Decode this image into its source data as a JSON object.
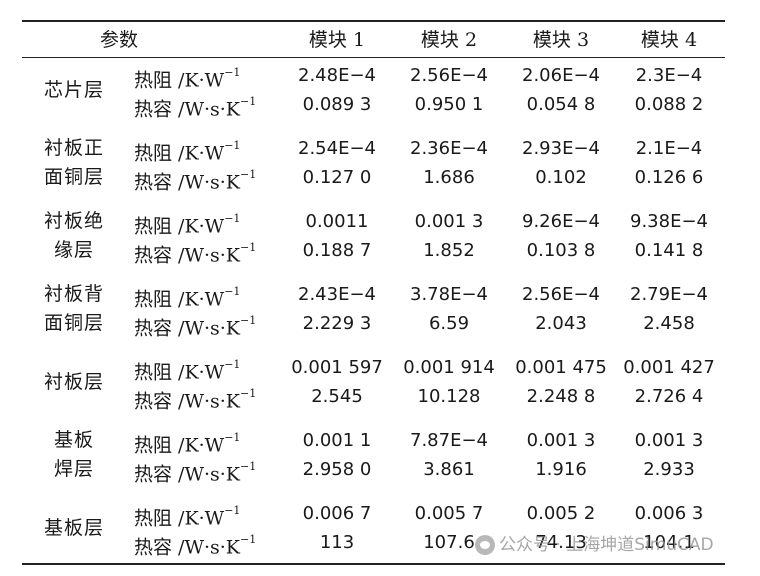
{
  "table": {
    "header": {
      "param": "参数",
      "modules": [
        "模块 1",
        "模块 2",
        "模块 3",
        "模块 4"
      ]
    },
    "prop_labels": {
      "resistance": "热阻 /K·W",
      "resistance_exp": "−1",
      "capacity": "热容 /W·s·K",
      "capacity_exp": "−1"
    },
    "rows": [
      {
        "layer_lines": [
          "芯片层"
        ],
        "resistance": [
          "2.48E−4",
          "2.56E−4",
          "2.06E−4",
          "2.3E−4"
        ],
        "capacity": [
          "0.089 3",
          "0.950 1",
          "0.054 8",
          "0.088 2"
        ]
      },
      {
        "layer_lines": [
          "衬板正",
          "面铜层"
        ],
        "resistance": [
          "2.54E−4",
          "2.36E−4",
          "2.93E−4",
          "2.1E−4"
        ],
        "capacity": [
          "0.127 0",
          "1.686",
          "0.102",
          "0.126 6"
        ]
      },
      {
        "layer_lines": [
          "衬板绝",
          "缘层"
        ],
        "resistance": [
          "0.0011",
          "0.001 3",
          "9.26E−4",
          "9.38E−4"
        ],
        "capacity": [
          "0.188 7",
          "1.852",
          "0.103 8",
          "0.141 8"
        ]
      },
      {
        "layer_lines": [
          "衬板背",
          "面铜层"
        ],
        "resistance": [
          "2.43E−4",
          "3.78E−4",
          "2.56E−4",
          "2.79E−4"
        ],
        "capacity": [
          "2.229 3",
          "6.59",
          "2.043",
          "2.458"
        ]
      },
      {
        "layer_lines": [
          "衬板层"
        ],
        "resistance": [
          "0.001 597",
          "0.001 914",
          "0.001 475",
          "0.001 427"
        ],
        "capacity": [
          "2.545",
          "10.128",
          "2.248 8",
          "2.726 4"
        ]
      },
      {
        "layer_lines": [
          "基板",
          "焊层"
        ],
        "resistance": [
          "0.001 1",
          "7.87E−4",
          "0.001 3",
          "0.001 3"
        ],
        "capacity": [
          "2.958 0",
          "3.861",
          "1.916",
          "2.933"
        ]
      },
      {
        "layer_lines": [
          "基板层"
        ],
        "resistance": [
          "0.006 7",
          "0.005 7",
          "0.005 2",
          "0.006 3"
        ],
        "capacity": [
          "113",
          "107.6",
          "74.13",
          "104.1"
        ]
      }
    ]
  },
  "watermark": {
    "text": "公众号 · 上海坤道SimuCAD",
    "icon": "wechat-icon"
  }
}
